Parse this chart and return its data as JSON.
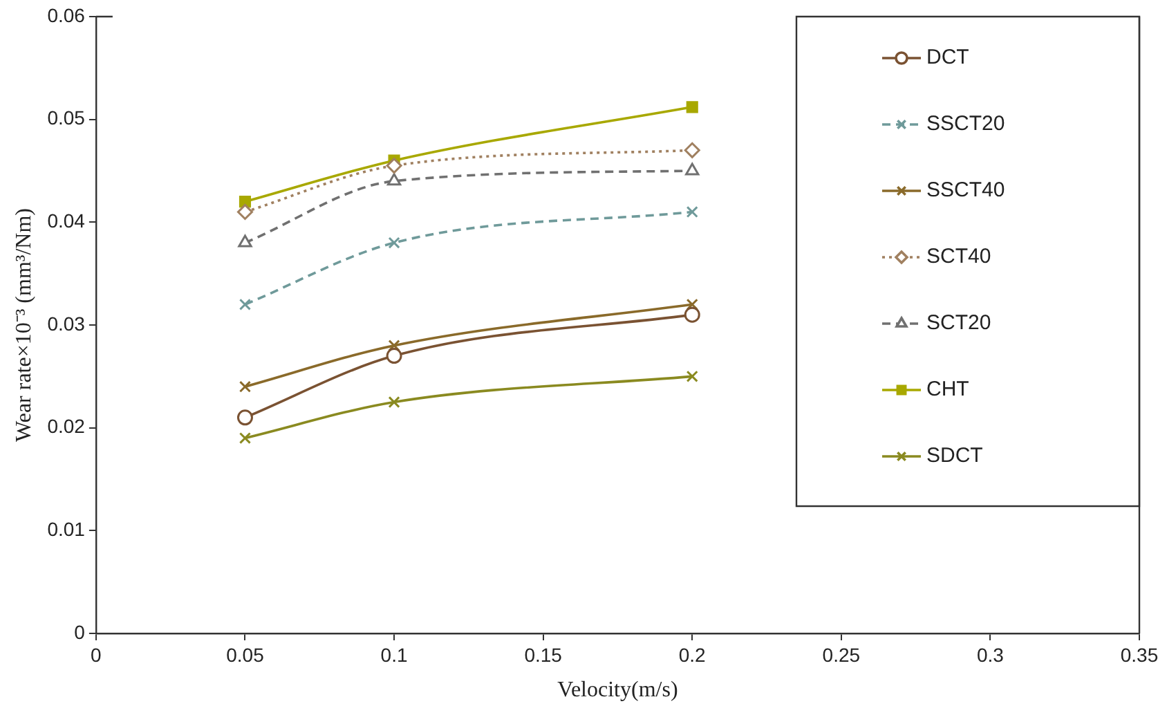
{
  "chart_data": {
    "type": "line",
    "xlabel": "Velocity(m/s)",
    "ylabel": "Wear rate×10⁻³ (mm³/Nm)",
    "x": [
      0.05,
      0.1,
      0.2
    ],
    "xlim": [
      0,
      0.35
    ],
    "xticks": [
      0,
      0.05,
      0.1,
      0.15,
      0.2,
      0.25,
      0.3,
      0.35
    ],
    "ylim": [
      0,
      0.06
    ],
    "yticks": [
      0,
      0.01,
      0.02,
      0.03,
      0.04,
      0.05,
      0.06
    ],
    "grid": false,
    "legend": "top right",
    "series": [
      {
        "name": "DCT",
        "color": "#7a5232",
        "marker": "circle",
        "line_style": "solid",
        "values": [
          0.021,
          0.027,
          0.031
        ]
      },
      {
        "name": "SSCT20",
        "color": "#6f9a9a",
        "marker": "cross",
        "line_style": "dashed",
        "values": [
          0.032,
          0.038,
          0.041
        ]
      },
      {
        "name": "SSCT40",
        "color": "#8a6a2a",
        "marker": "cross",
        "line_style": "solid",
        "values": [
          0.024,
          0.028,
          0.032
        ]
      },
      {
        "name": "SCT40",
        "color": "#a08060",
        "marker": "diamond",
        "line_style": "dotted",
        "values": [
          0.041,
          0.0455,
          0.047
        ]
      },
      {
        "name": "SCT20",
        "color": "#707070",
        "marker": "triangle",
        "line_style": "dashed",
        "values": [
          0.038,
          0.044,
          0.045
        ]
      },
      {
        "name": "CHT",
        "color": "#a8a800",
        "marker": "square",
        "line_style": "solid",
        "values": [
          0.042,
          0.046,
          0.0512
        ]
      },
      {
        "name": "SDCT",
        "color": "#8a8a20",
        "marker": "cross",
        "line_style": "solid",
        "values": [
          0.019,
          0.0225,
          0.025
        ]
      }
    ]
  }
}
